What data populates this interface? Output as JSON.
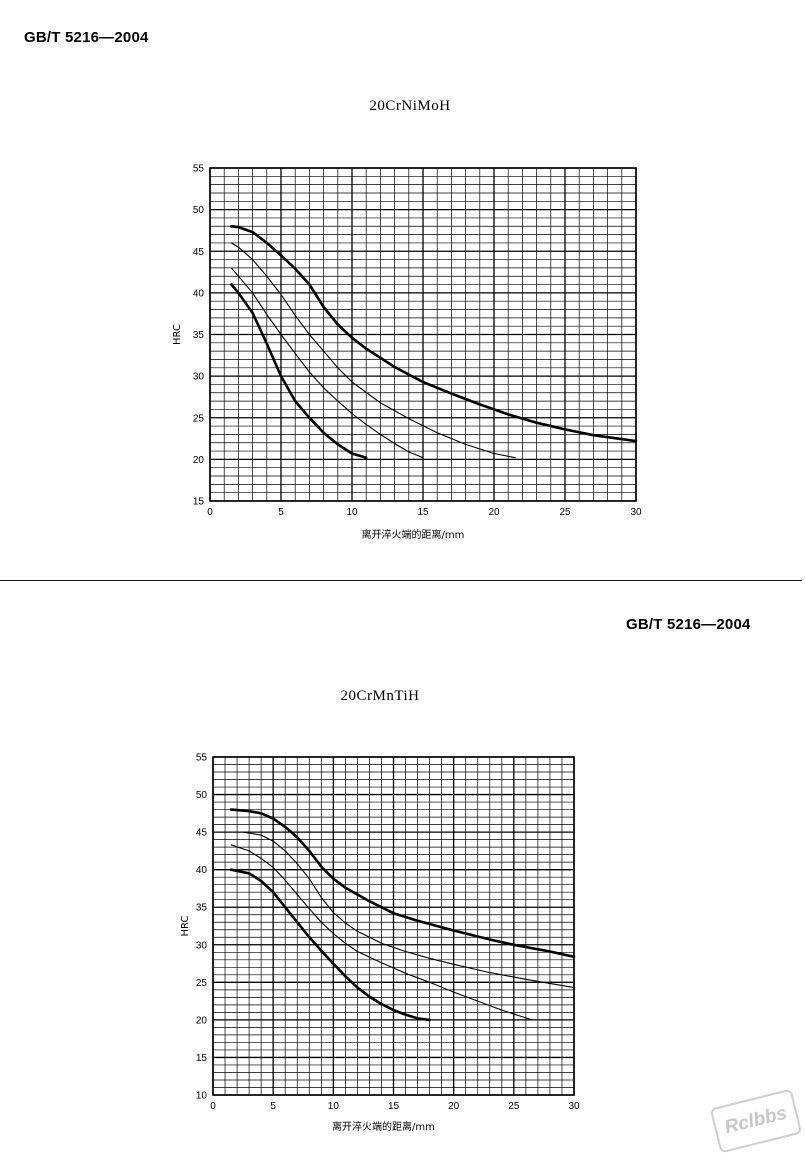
{
  "page": {
    "standard_top": "GB/T 5216—2004",
    "standard_mid": "GB/T 5216—2004",
    "watermark": "Rclbbs"
  },
  "chart_data": [
    {
      "type": "line",
      "title": "20CrNiMoH",
      "xlabel": "离开淬火端的距离/mm",
      "ylabel": "HRC",
      "xlim": [
        0,
        30
      ],
      "ylim": [
        15,
        55
      ],
      "xticks": [
        "0",
        "5",
        "10",
        "15",
        "20",
        "25",
        "30"
      ],
      "yticks": [
        "15",
        "20",
        "25",
        "30",
        "35",
        "40",
        "45",
        "50",
        "55"
      ],
      "grid": true,
      "series": [
        {
          "style": "heavy",
          "x": [
            1.5,
            2,
            3,
            4,
            5,
            6,
            7,
            8,
            9,
            10,
            11,
            12,
            13,
            15,
            17,
            19,
            21,
            23,
            25,
            27,
            30
          ],
          "y": [
            48,
            47.9,
            47.3,
            46,
            44.5,
            42.9,
            41,
            38.3,
            36.2,
            34.6,
            33.3,
            32.2,
            31.1,
            29.3,
            27.9,
            26.6,
            25.4,
            24.4,
            23.6,
            22.9,
            22.2
          ]
        },
        {
          "style": "light",
          "x": [
            1.5,
            2,
            3,
            4,
            5,
            6,
            7,
            8,
            9,
            10,
            12,
            14,
            16,
            18,
            20,
            21.5
          ],
          "y": [
            46,
            45.5,
            44,
            42,
            39.8,
            37.3,
            35,
            33,
            31,
            29.3,
            26.8,
            24.9,
            23.2,
            21.8,
            20.7,
            20.2
          ]
        },
        {
          "style": "light",
          "x": [
            1.5,
            2,
            3,
            4,
            5,
            6,
            7,
            8,
            9,
            10,
            11,
            12,
            13,
            14,
            15
          ],
          "y": [
            43,
            42,
            40,
            37.4,
            35,
            32.7,
            30.5,
            28.6,
            27,
            25.5,
            24.2,
            23,
            21.9,
            20.9,
            20.2
          ]
        },
        {
          "style": "heavy",
          "x": [
            1.5,
            2,
            3,
            4,
            5,
            6,
            7,
            8,
            9,
            10,
            11
          ],
          "y": [
            41,
            40,
            37.6,
            33.9,
            30,
            27,
            25,
            23.2,
            21.8,
            20.7,
            20.2
          ]
        }
      ]
    },
    {
      "type": "line",
      "title": "20CrMnTiH",
      "xlabel": "离开淬火端的距离/mm",
      "ylabel": "HRC",
      "xlim": [
        0,
        30
      ],
      "ylim": [
        10,
        55
      ],
      "xticks": [
        "0",
        "5",
        "10",
        "15",
        "20",
        "25",
        "30"
      ],
      "yticks": [
        "10",
        "15",
        "20",
        "25",
        "30",
        "35",
        "40",
        "45",
        "50",
        "55"
      ],
      "grid": true,
      "series": [
        {
          "style": "heavy",
          "x": [
            1.5,
            3,
            4,
            5,
            6,
            7,
            8,
            9,
            10,
            11,
            12,
            13,
            15,
            17,
            20,
            23,
            25,
            28,
            30
          ],
          "y": [
            48,
            47.8,
            47.5,
            46.8,
            45.7,
            44.3,
            42.5,
            40.4,
            38.8,
            37.6,
            36.7,
            35.8,
            34.2,
            33.2,
            31.9,
            30.7,
            30,
            29.1,
            28.4
          ]
        },
        {
          "style": "light",
          "x": [
            2.5,
            4,
            5,
            6,
            7,
            8,
            9,
            10,
            11,
            12,
            14,
            16,
            18,
            20,
            23,
            26,
            30
          ],
          "y": [
            45,
            44.6,
            43.8,
            42.5,
            40.8,
            38.8,
            36.3,
            34.3,
            32.9,
            31.8,
            30.2,
            29.1,
            28.2,
            27.4,
            26.3,
            25.4,
            24.3
          ]
        },
        {
          "style": "light",
          "x": [
            1.5,
            3,
            4,
            5,
            6,
            7,
            8,
            9,
            10,
            11,
            12,
            14,
            16,
            18,
            20,
            22,
            24,
            26.5
          ],
          "y": [
            43.3,
            42.5,
            41.5,
            40.3,
            38.6,
            36.7,
            34.8,
            33,
            31.5,
            30.2,
            29.1,
            27.6,
            26.2,
            25,
            23.7,
            22.5,
            21.3,
            20
          ]
        },
        {
          "style": "heavy",
          "x": [
            1.5,
            3,
            4,
            5,
            6,
            7,
            8,
            9,
            10,
            11,
            12,
            13,
            14,
            15,
            16,
            17,
            18
          ],
          "y": [
            40,
            39.5,
            38.5,
            37,
            35,
            33,
            31,
            29.2,
            27.5,
            25.8,
            24.3,
            23.1,
            22.1,
            21.3,
            20.7,
            20.2,
            20
          ]
        }
      ]
    }
  ]
}
